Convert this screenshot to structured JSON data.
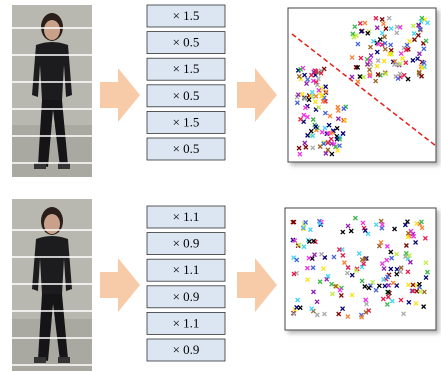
{
  "top": {
    "weights": [
      "× 1.5",
      "× 0.5",
      "× 1.5",
      "× 0.5",
      "× 1.5",
      "× 0.5"
    ]
  },
  "bottom": {
    "weights": [
      "× 1.1",
      "× 0.9",
      "× 1.1",
      "× 0.9",
      "× 1.1",
      "× 0.9"
    ]
  }
}
